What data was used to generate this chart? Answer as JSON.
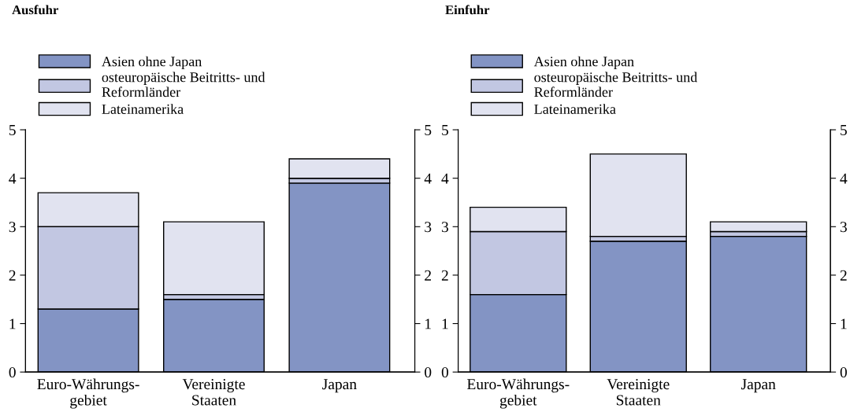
{
  "chart_data": [
    {
      "type": "bar",
      "title": "Ausfuhr",
      "stacked": true,
      "legend": "top",
      "grid": false,
      "categories": [
        "Euro-Währungs-\ngebiet",
        "Vereinigte\nStaaten",
        "Japan"
      ],
      "series": [
        {
          "name": "Asien ohne Japan",
          "color": "#8394c4",
          "values": [
            1.3,
            1.5,
            3.9
          ]
        },
        {
          "name": "osteuropäische Beitritts- und\nReformländer",
          "color": "#c2c7e2",
          "values": [
            1.7,
            0.1,
            0.1
          ]
        },
        {
          "name": "Lateinamerika",
          "color": "#e1e3f0",
          "values": [
            0.7,
            1.5,
            0.4
          ]
        }
      ],
      "ylim": [
        0,
        5
      ],
      "yticks": [
        0,
        1,
        2,
        3,
        4,
        5
      ],
      "y2lim": [
        0,
        5
      ],
      "y2ticks": [
        0,
        1,
        2,
        3,
        4,
        5
      ]
    },
    {
      "type": "bar",
      "title": "Einfuhr",
      "stacked": true,
      "legend": "top",
      "grid": false,
      "categories": [
        "Euro-Währungs-\ngebiet",
        "Vereinigte\nStaaten",
        "Japan"
      ],
      "series": [
        {
          "name": "Asien ohne Japan",
          "color": "#8394c4",
          "values": [
            1.6,
            2.7,
            2.8
          ]
        },
        {
          "name": "osteuropäische Beitritts- und\nReformländer",
          "color": "#c2c7e2",
          "values": [
            1.3,
            0.1,
            0.1
          ]
        },
        {
          "name": "Lateinamerika",
          "color": "#e1e3f0",
          "values": [
            0.5,
            1.7,
            0.2
          ]
        }
      ],
      "ylim": [
        0,
        5
      ],
      "yticks": [
        0,
        1,
        2,
        3,
        4,
        5
      ],
      "y2lim": [
        0,
        5
      ],
      "y2ticks": [
        0,
        1,
        2,
        3,
        4,
        5
      ]
    }
  ]
}
